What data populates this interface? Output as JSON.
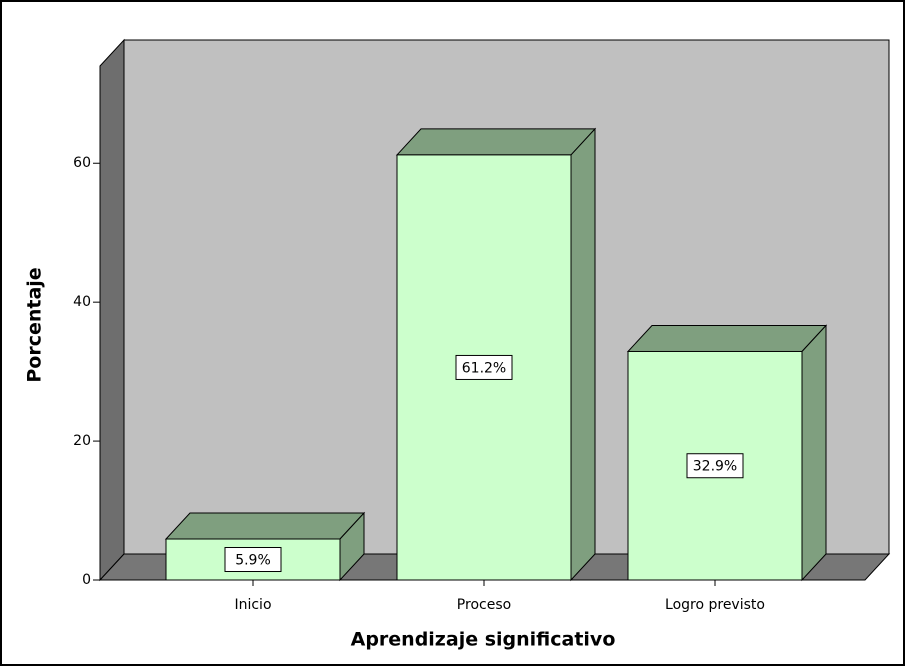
{
  "chart_data": {
    "type": "bar3d",
    "x_label": "Aprendizaje significativo",
    "y_label": "Porcentaje",
    "categories": [
      "Inicio",
      "Proceso",
      "Logro previsto"
    ],
    "values": [
      5.9,
      61.2,
      32.9
    ],
    "value_labels": [
      "5.9%",
      "61.2%",
      "32.9%"
    ],
    "color": "#ccffcc",
    "ylim": [
      0,
      74
    ],
    "yticks": [
      0,
      20,
      40,
      60
    ]
  }
}
